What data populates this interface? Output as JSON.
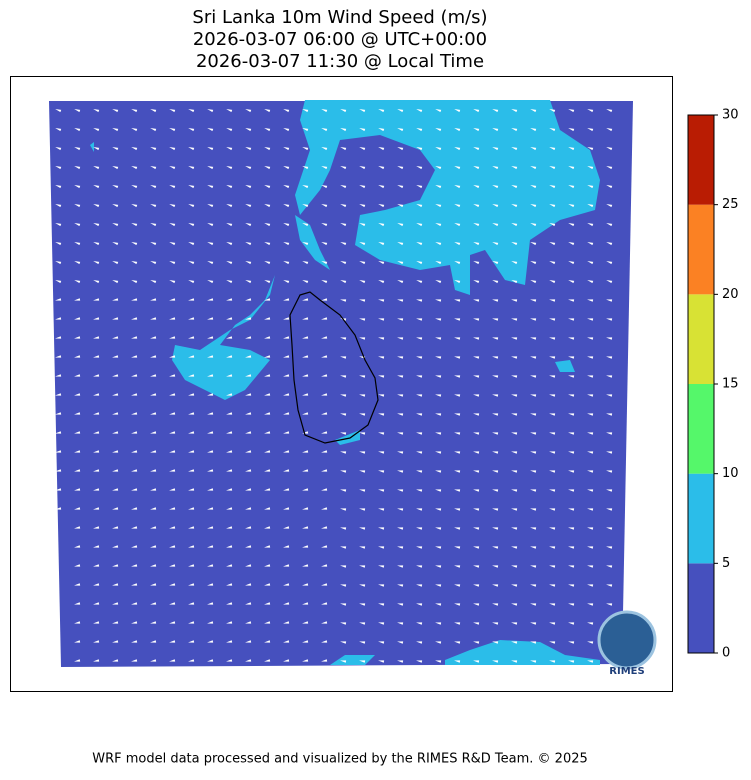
{
  "title": [
    "Sri Lanka 10m Wind Speed (m/s)",
    "2026-03-07 06:00 @ UTC+00:00",
    "2026-03-07 11:30 @ Local Time"
  ],
  "colorbar": {
    "ticks": [
      0,
      5,
      10,
      15,
      20,
      25,
      30
    ],
    "colors": [
      "#4650be",
      "#2bbde9",
      "#55f76a",
      "#d8e234",
      "#fb8123",
      "#b91c03"
    ]
  },
  "logo": "RIMES",
  "footer": "WRF model data processed and visualized by the RIMES R&D Team. © 2025"
}
